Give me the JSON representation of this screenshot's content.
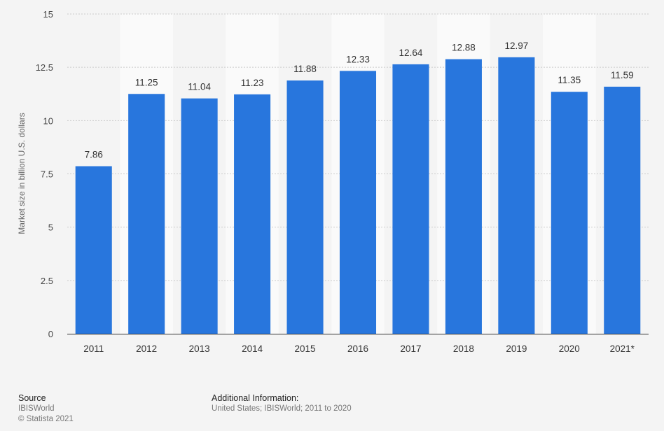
{
  "chart_data": {
    "type": "bar",
    "categories": [
      "2011",
      "2012",
      "2013",
      "2014",
      "2015",
      "2016",
      "2017",
      "2018",
      "2019",
      "2020",
      "2021*"
    ],
    "series": [
      {
        "values": [
          7.86,
          11.25,
          11.04,
          11.23,
          11.88,
          12.33,
          12.64,
          12.88,
          12.97,
          11.35,
          11.59
        ],
        "labels": [
          "7.86",
          "11.25",
          "11.04",
          "11.23",
          "11.88",
          "12.33",
          "12.64",
          "12.88",
          "12.97",
          "11.35",
          "11.59"
        ]
      }
    ],
    "ylabel": "Market size in billion U.S. dollars",
    "ylim": [
      0,
      15
    ],
    "yticks": [
      0,
      2.5,
      5,
      7.5,
      10,
      12.5,
      15
    ],
    "ytick_labels": [
      "0",
      "2.5",
      "5",
      "7.5",
      "10",
      "12.5",
      "15"
    ],
    "grid": true,
    "colors": {
      "bar": "#2876dd",
      "alt_band": "#fafafa",
      "grid": "#cccccc",
      "axis": "#333333"
    }
  },
  "footer": {
    "source_heading": "Source",
    "source_name": "IBISWorld",
    "copyright": "© Statista 2021",
    "additional_heading": "Additional Information:",
    "additional_text": "United States; IBISWorld; 2011 to 2020"
  }
}
